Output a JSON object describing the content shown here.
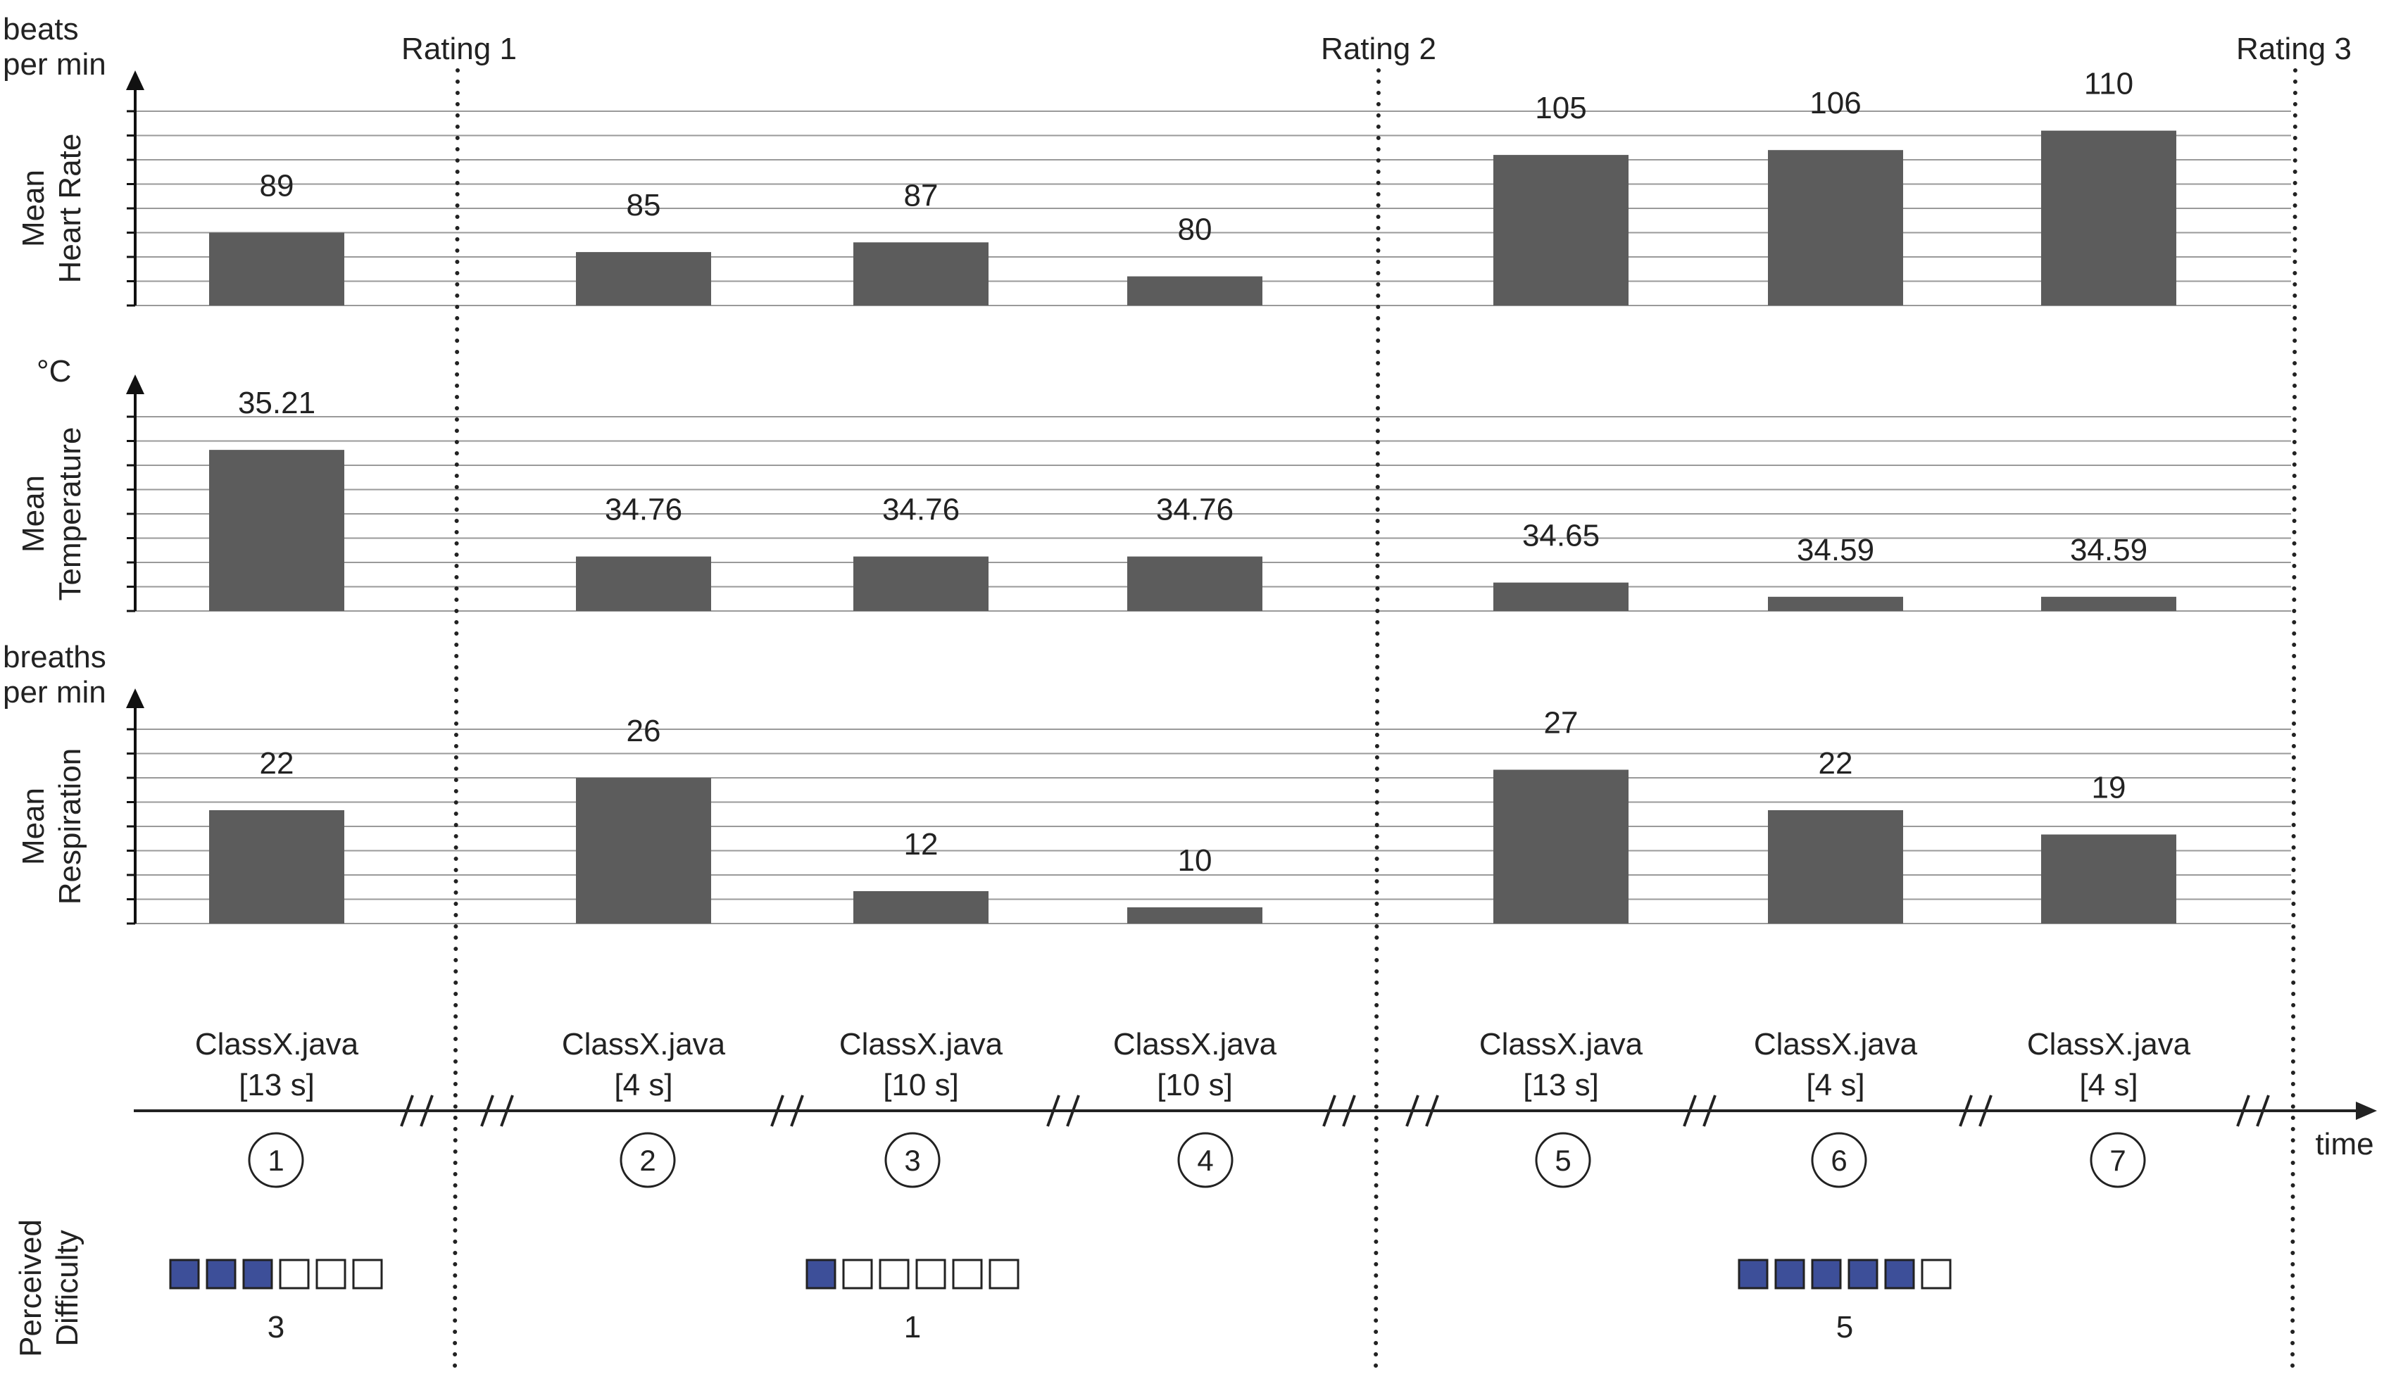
{
  "chart_data": {
    "type": "bar",
    "x_label": "time",
    "episodes": [
      {
        "number": "1",
        "file": "ClassX.java",
        "duration": "[13 s]"
      },
      {
        "number": "2",
        "file": "ClassX.java",
        "duration": "[4 s]"
      },
      {
        "number": "3",
        "file": "ClassX.java",
        "duration": "[10 s]"
      },
      {
        "number": "4",
        "file": "ClassX.java",
        "duration": "[10 s]"
      },
      {
        "number": "5",
        "file": "ClassX.java",
        "duration": "[13 s]"
      },
      {
        "number": "6",
        "file": "ClassX.java",
        "duration": "[4 s]"
      },
      {
        "number": "7",
        "file": "ClassX.java",
        "duration": "[4 s]"
      }
    ],
    "ratings": [
      "Rating 1",
      "Rating 2",
      "Rating 3"
    ],
    "panels": [
      {
        "ylabel_lines": [
          "Mean",
          "Heart Rate"
        ],
        "unit_lines": [
          "beats",
          "per min"
        ],
        "values": [
          89,
          85,
          87,
          80,
          105,
          106,
          110
        ],
        "labels": [
          "89",
          "85",
          "87",
          "80",
          "105",
          "106",
          "110"
        ],
        "ylim": [
          74,
          114
        ]
      },
      {
        "ylabel_lines": [
          "Mean",
          "Temperature"
        ],
        "unit_lines": [
          "°C"
        ],
        "values": [
          35.21,
          34.76,
          34.76,
          34.76,
          34.65,
          34.59,
          34.59
        ],
        "labels": [
          "35.21",
          "34.76",
          "34.76",
          "34.76",
          "34.65",
          "34.59",
          "34.59"
        ],
        "ylim": [
          34.53,
          35.35
        ]
      },
      {
        "ylabel_lines": [
          "Mean",
          "Respiration"
        ],
        "unit_lines": [
          "breaths",
          "per min"
        ],
        "values": [
          22,
          26,
          12,
          10,
          27,
          22,
          19
        ],
        "labels": [
          "22",
          "26",
          "12",
          "10",
          "27",
          "22",
          "19"
        ],
        "ylim": [
          8,
          32
        ]
      }
    ],
    "difficulty": {
      "label_lines": [
        "Perceived",
        "Difficulty"
      ],
      "scale_max": 6,
      "ratings": [
        {
          "value": 3,
          "label": "3"
        },
        {
          "value": 1,
          "label": "1"
        },
        {
          "value": 5,
          "label": "5"
        }
      ],
      "filled_color": "#3d4f99"
    },
    "bar_color": "#5c5c5c",
    "grid": true
  }
}
